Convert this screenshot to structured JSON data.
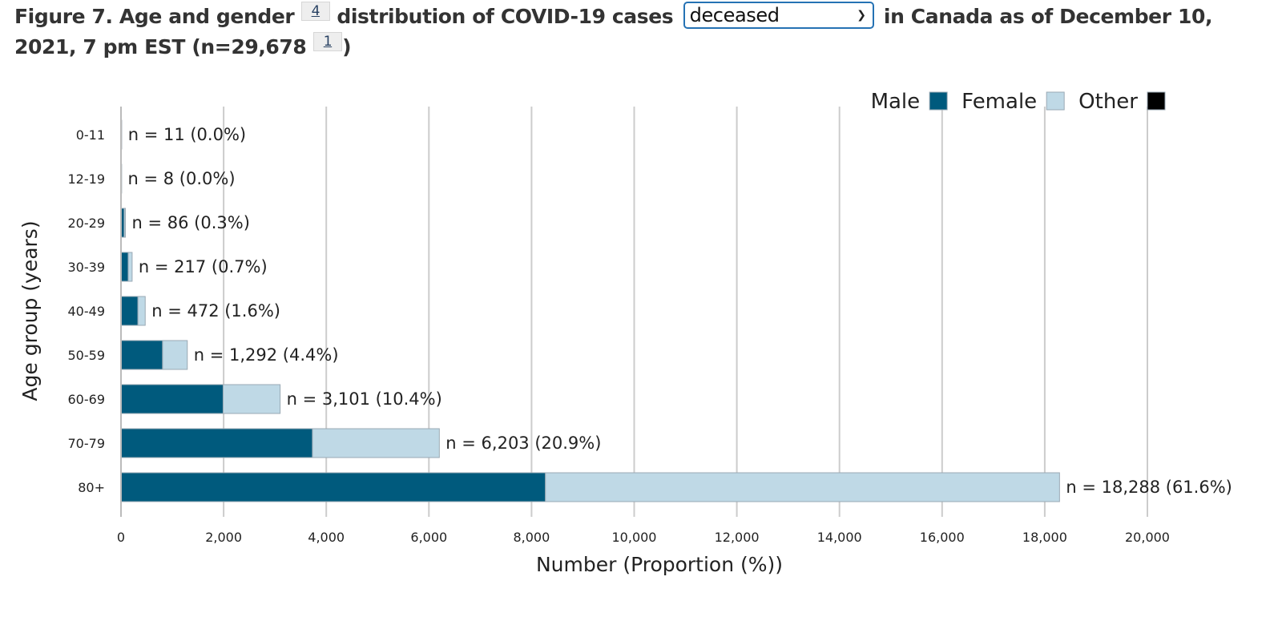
{
  "title": {
    "part1": "Figure 7. Age and gender",
    "footnote_a": "4",
    "part2": "distribution of COVID-19 cases",
    "part3": "in Canada as of December 10, 2021, 7 pm EST (n=29,678",
    "footnote_b": "1",
    "part4": ")"
  },
  "case_type_select": {
    "selected": "deceased"
  },
  "chart_data": {
    "type": "bar",
    "orientation": "horizontal",
    "stacked": true,
    "categories": [
      "0-11",
      "12-19",
      "20-29",
      "30-39",
      "40-49",
      "50-59",
      "60-69",
      "70-79",
      "80+"
    ],
    "series": [
      {
        "name": "Male",
        "color": "#005a7d",
        "values": [
          6,
          5,
          62,
          140,
          330,
          810,
          1990,
          3730,
          8270
        ]
      },
      {
        "name": "Female",
        "color": "#bfd9e6",
        "values": [
          5,
          3,
          24,
          77,
          142,
          482,
          1111,
          2473,
          10018
        ]
      },
      {
        "name": "Other",
        "color": "#000000",
        "values": [
          0,
          0,
          0,
          0,
          0,
          0,
          0,
          0,
          0
        ]
      }
    ],
    "data_labels": [
      "n = 11 (0.0%)",
      "n = 8 (0.0%)",
      "n = 86 (0.3%)",
      "n = 217 (0.7%)",
      "n = 472 (1.6%)",
      "n = 1,292 (4.4%)",
      "n = 3,101 (10.4%)",
      "n = 6,203 (20.9%)",
      "n = 18,288 (61.6%)"
    ],
    "xlabel": "Number (Proportion (%))",
    "ylabel": "Age group (years)",
    "xlim": [
      0,
      20000
    ],
    "xticks": [
      0,
      2000,
      4000,
      6000,
      8000,
      10000,
      12000,
      14000,
      16000,
      18000,
      20000
    ],
    "xtick_labels": [
      "0",
      "2,000",
      "4,000",
      "6,000",
      "8,000",
      "10,000",
      "12,000",
      "14,000",
      "16,000",
      "18,000",
      "20,000"
    ],
    "grid": "vertical",
    "legend_position": "top-right"
  }
}
